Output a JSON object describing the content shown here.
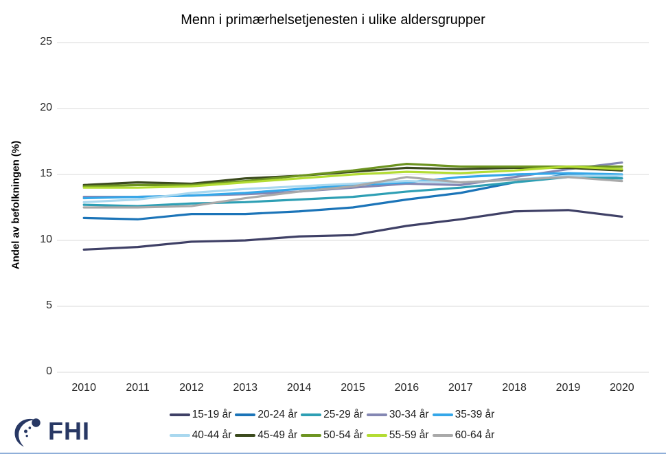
{
  "header": {
    "title": "Menn i primærhelsetjenesten i ulike aldersgrupper"
  },
  "chart_data": {
    "type": "line",
    "title": "Menn i primærhelsetjenesten i ulike aldersgrupper",
    "xlabel": "",
    "ylabel": "Andel av befolkningen (%)",
    "ylim": [
      0,
      25
    ],
    "yticks": [
      0,
      5,
      10,
      15,
      20,
      25
    ],
    "grid": true,
    "legend_position": "bottom",
    "categories": [
      "2010",
      "2011",
      "2012",
      "2013",
      "2014",
      "2015",
      "2016",
      "2017",
      "2018",
      "2019",
      "2020"
    ],
    "series": [
      {
        "name": "15-19 år",
        "color": "#3F4066",
        "values": [
          9.3,
          9.5,
          9.9,
          10.0,
          10.3,
          10.4,
          11.1,
          11.6,
          12.2,
          12.3,
          11.8
        ]
      },
      {
        "name": "20-24 år",
        "color": "#1B74B8",
        "values": [
          11.7,
          11.6,
          12.0,
          12.0,
          12.2,
          12.5,
          13.1,
          13.6,
          14.4,
          15.0,
          14.7
        ]
      },
      {
        "name": "25-29 år",
        "color": "#2E9FB4",
        "values": [
          12.7,
          12.6,
          12.8,
          12.9,
          13.1,
          13.3,
          13.7,
          14.0,
          14.4,
          14.8,
          14.7
        ]
      },
      {
        "name": "30-34 år",
        "color": "#8487B3",
        "values": [
          13.3,
          13.3,
          13.4,
          13.5,
          13.7,
          14.0,
          14.3,
          14.2,
          14.8,
          15.4,
          15.9
        ]
      },
      {
        "name": "35-39 år",
        "color": "#35A7E9",
        "values": [
          13.2,
          13.3,
          13.4,
          13.6,
          13.9,
          14.2,
          14.4,
          14.8,
          15.0,
          15.1,
          15.0
        ]
      },
      {
        "name": "40-44 år",
        "color": "#A9D8EF",
        "values": [
          12.9,
          13.1,
          13.6,
          13.9,
          14.1,
          14.3,
          14.5,
          14.4,
          14.6,
          14.9,
          14.9
        ]
      },
      {
        "name": "45-49 år",
        "color": "#3B4A1D",
        "values": [
          14.2,
          14.4,
          14.3,
          14.7,
          14.9,
          15.2,
          15.5,
          15.4,
          15.5,
          15.5,
          15.3
        ]
      },
      {
        "name": "50-54 år",
        "color": "#6D9421",
        "values": [
          14.1,
          14.2,
          14.2,
          14.5,
          14.9,
          15.3,
          15.8,
          15.6,
          15.6,
          15.6,
          15.6
        ]
      },
      {
        "name": "55-59 år",
        "color": "#B3DC33",
        "values": [
          14.0,
          14.0,
          14.1,
          14.4,
          14.7,
          15.0,
          15.2,
          15.1,
          15.3,
          15.6,
          15.4
        ]
      },
      {
        "name": "60-64 år",
        "color": "#A9A9A9",
        "values": [
          12.5,
          12.5,
          12.6,
          13.2,
          13.7,
          14.1,
          14.8,
          14.4,
          14.6,
          14.8,
          14.5
        ]
      }
    ]
  },
  "footer": {
    "logo_text": "FHI"
  },
  "colors": {
    "grid": "#D9D9D9",
    "text": "#262626",
    "logo_navy": "#283864",
    "bottom_rule": "#8FAFD9",
    "background": "#FFFFFF"
  }
}
